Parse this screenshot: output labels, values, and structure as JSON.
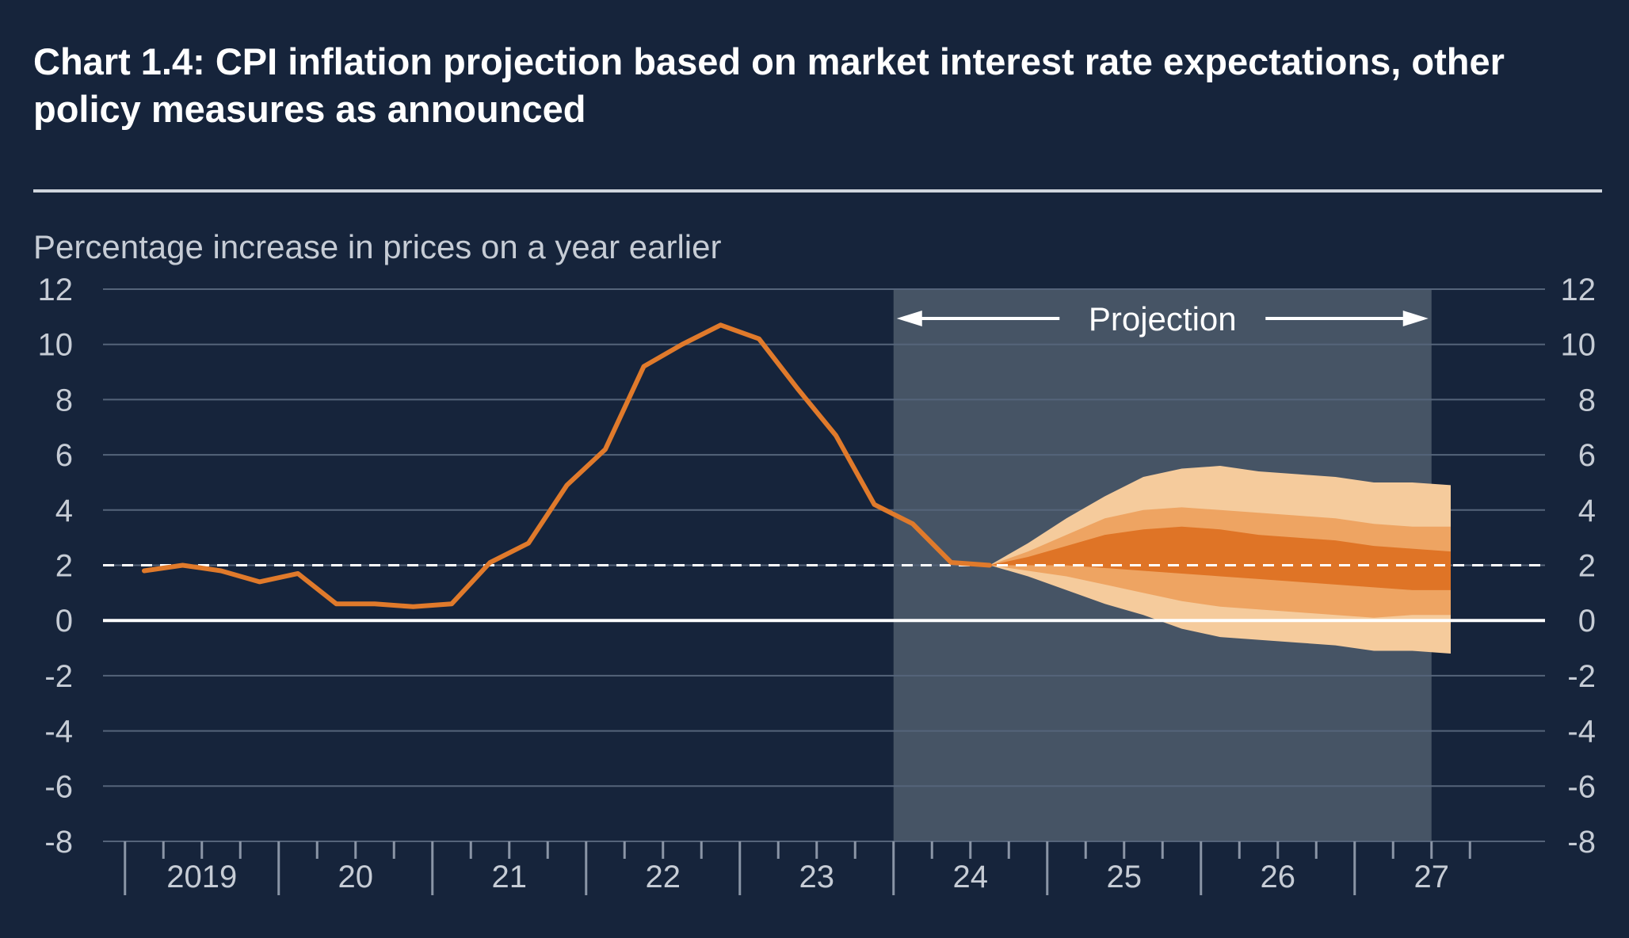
{
  "title": "Chart 1.4: CPI inflation projection based on market interest rate expectations, other policy measures as announced",
  "colors": {
    "background": "#16243b",
    "projection_shade": "#465465",
    "cpi_line": "#e07a2b",
    "band_outer": "#f5cb9c",
    "band_middle": "#eea462",
    "band_inner": "#df7426",
    "target_line": "#ffffff",
    "gridline": "#55647a"
  },
  "chart_data": {
    "type": "line",
    "title": "Chart 1.4: CPI inflation projection based on market interest rate expectations, other policy measures as announced",
    "ylabel": "Percentage increase in prices on a year earlier",
    "xlabel": "",
    "ylim": [
      -8,
      12
    ],
    "yticks": [
      12,
      10,
      8,
      6,
      4,
      2,
      0,
      -2,
      -4,
      -6,
      -8
    ],
    "ytick_labels": [
      "12",
      "10",
      "8",
      "6",
      "4",
      "2",
      "0",
      "-2",
      "-4",
      "-6",
      "-8"
    ],
    "x_tick_labels": [
      "2019",
      "20",
      "21",
      "22",
      "23",
      "24",
      "25",
      "26",
      "27"
    ],
    "grid": true,
    "target_line_value": 2,
    "projection_label": "Projection",
    "projection_start": "2024Q1",
    "projection_end": "2027Q2",
    "series": [
      {
        "values": [
          {
            "x": "2019Q1",
            "y": 1.8
          },
          {
            "x": "2019Q2",
            "y": 2.0
          },
          {
            "x": "2019Q3",
            "y": 1.8
          },
          {
            "x": "2019Q4",
            "y": 1.4
          },
          {
            "x": "2020Q1",
            "y": 1.7
          },
          {
            "x": "2020Q2",
            "y": 0.6
          },
          {
            "x": "2020Q3",
            "y": 0.6
          },
          {
            "x": "2020Q4",
            "y": 0.5
          },
          {
            "x": "2021Q1",
            "y": 0.6
          },
          {
            "x": "2021Q2",
            "y": 2.1
          },
          {
            "x": "2021Q3",
            "y": 2.8
          },
          {
            "x": "2021Q4",
            "y": 4.9
          },
          {
            "x": "2022Q1",
            "y": 6.2
          },
          {
            "x": "2022Q2",
            "y": 9.2
          },
          {
            "x": "2022Q3",
            "y": 10.0
          },
          {
            "x": "2022Q4",
            "y": 10.7
          },
          {
            "x": "2023Q1",
            "y": 10.2
          },
          {
            "x": "2023Q2",
            "y": 8.4
          },
          {
            "x": "2023Q3",
            "y": 6.7
          },
          {
            "x": "2023Q4",
            "y": 4.2
          },
          {
            "x": "2024Q1",
            "y": 3.5
          },
          {
            "x": "2024Q2",
            "y": 2.1
          },
          {
            "x": "2024Q3",
            "y": 2.0
          }
        ]
      }
    ],
    "fan": {
      "x": [
        "2024Q3",
        "2024Q4",
        "2025Q1",
        "2025Q2",
        "2025Q3",
        "2025Q4",
        "2026Q1",
        "2026Q2",
        "2026Q3",
        "2026Q4",
        "2027Q1",
        "2027Q2",
        "2027Q3"
      ],
      "bands": [
        {
          "upper": [
            2.0,
            2.8,
            3.7,
            4.5,
            5.2,
            5.5,
            5.6,
            5.4,
            5.3,
            5.2,
            5.0,
            5.0,
            4.9
          ],
          "lower": [
            2.0,
            1.6,
            1.1,
            0.6,
            0.2,
            -0.3,
            -0.6,
            -0.7,
            -0.8,
            -0.9,
            -1.1,
            -1.1,
            -1.2
          ]
        },
        {
          "upper": [
            2.0,
            2.5,
            3.1,
            3.7,
            4.0,
            4.1,
            4.0,
            3.9,
            3.8,
            3.7,
            3.5,
            3.4,
            3.4
          ],
          "lower": [
            2.0,
            1.8,
            1.6,
            1.3,
            1.0,
            0.7,
            0.5,
            0.4,
            0.3,
            0.2,
            0.1,
            0.2,
            0.2
          ]
        },
        {
          "upper": [
            2.0,
            2.3,
            2.7,
            3.1,
            3.3,
            3.4,
            3.3,
            3.1,
            3.0,
            2.9,
            2.7,
            2.6,
            2.5
          ],
          "lower": [
            2.0,
            2.0,
            2.0,
            1.9,
            1.8,
            1.7,
            1.6,
            1.5,
            1.4,
            1.3,
            1.2,
            1.1,
            1.1
          ]
        }
      ]
    }
  }
}
